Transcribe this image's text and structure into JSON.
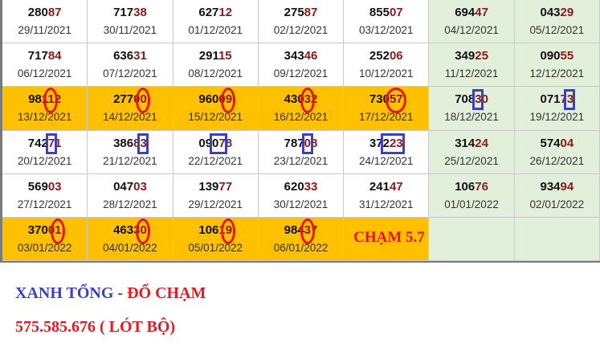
{
  "colors": {
    "highlight_row": "#ffc000",
    "weekend_column": "#e2efda",
    "tail_digits": "#8b1a1a",
    "oval_mark": "#e8141c",
    "box_mark": "#3b3fc4"
  },
  "rows": [
    {
      "highlight": false,
      "cells": [
        {
          "num": "28087",
          "date": "29/11/2021"
        },
        {
          "num": "71738",
          "date": "30/11/2021"
        },
        {
          "num": "62712",
          "date": "01/12/2021"
        },
        {
          "num": "27587",
          "date": "02/12/2021"
        },
        {
          "num": "85507",
          "date": "03/12/2021"
        },
        {
          "num": "69447",
          "date": "04/12/2021"
        },
        {
          "num": "04329",
          "date": "05/12/2021"
        }
      ]
    },
    {
      "highlight": false,
      "cells": [
        {
          "num": "71784",
          "date": "06/12/2021"
        },
        {
          "num": "63631",
          "date": "07/12/2021"
        },
        {
          "num": "29115",
          "date": "08/12/2021"
        },
        {
          "num": "34346",
          "date": "09/12/2021"
        },
        {
          "num": "25206",
          "date": "10/12/2021"
        },
        {
          "num": "34925",
          "date": "11/12/2021"
        },
        {
          "num": "09055",
          "date": "12/12/2021"
        }
      ]
    },
    {
      "highlight": true,
      "cells": [
        {
          "num": "98112",
          "date": "13/12/2021",
          "mark": {
            "type": "oval",
            "digit": 3,
            "span": 1
          }
        },
        {
          "num": "27700",
          "date": "14/12/2021",
          "mark": {
            "type": "oval",
            "digit": 4,
            "span": 1
          }
        },
        {
          "num": "96009",
          "date": "15/12/2021",
          "mark": {
            "type": "oval",
            "digit": 4,
            "span": 1
          }
        },
        {
          "num": "43032",
          "date": "16/12/2021",
          "mark": {
            "type": "oval",
            "digit": 3,
            "span": 1
          }
        },
        {
          "num": "73057",
          "date": "17/12/2021",
          "mark": {
            "type": "oval",
            "digit": 3,
            "span": 2
          }
        },
        {
          "num": "70830",
          "date": "18/12/2021",
          "mark": {
            "type": "box",
            "digit": 3,
            "span": 1
          }
        },
        {
          "num": "07173",
          "date": "19/12/2021",
          "mark": {
            "type": "box",
            "digit": 4,
            "span": 1
          }
        }
      ]
    },
    {
      "highlight": false,
      "cells": [
        {
          "num": "74271",
          "date": "20/12/2021",
          "mark": {
            "type": "box",
            "digit": 3,
            "span": 1
          }
        },
        {
          "num": "38683",
          "date": "21/12/2021",
          "mark": {
            "type": "box",
            "digit": 4,
            "span": 1
          }
        },
        {
          "num": "09078",
          "date": "22/12/2021",
          "mark": {
            "type": "box",
            "digit": 2,
            "span": 2
          }
        },
        {
          "num": "78708",
          "date": "23/12/2021",
          "mark": {
            "type": "box",
            "digit": 3,
            "span": 1
          }
        },
        {
          "num": "37223",
          "date": "24/12/2021",
          "mark": {
            "type": "box",
            "digit": 2,
            "span": 3
          }
        },
        {
          "num": "31424",
          "date": "25/12/2021"
        },
        {
          "num": "57404",
          "date": "26/12/2021"
        }
      ]
    },
    {
      "highlight": false,
      "cells": [
        {
          "num": "56903",
          "date": "27/12/2021"
        },
        {
          "num": "04703",
          "date": "28/12/2021"
        },
        {
          "num": "13977",
          "date": "29/12/2021"
        },
        {
          "num": "62033",
          "date": "30/12/2021"
        },
        {
          "num": "24147",
          "date": "31/12/2021"
        },
        {
          "num": "10676",
          "date": "01/01/2022"
        },
        {
          "num": "93494",
          "date": "02/01/2022"
        }
      ]
    },
    {
      "highlight": true,
      "cells": [
        {
          "num": "37001",
          "date": "03/01/2022",
          "mark": {
            "type": "oval",
            "digit": 4,
            "span": 1
          }
        },
        {
          "num": "46330",
          "date": "04/01/2022",
          "mark": {
            "type": "oval",
            "digit": 4,
            "span": 1
          }
        },
        {
          "num": "10619",
          "date": "05/01/2022",
          "mark": {
            "type": "oval",
            "digit": 4,
            "span": 1
          }
        },
        {
          "num": "98437",
          "date": "06/01/2022",
          "mark": {
            "type": "oval",
            "digit": 3,
            "span": 1
          }
        },
        {
          "label": "CHẠM 5.7"
        },
        {},
        {}
      ]
    }
  ],
  "legend": {
    "blue_part": "XANH TỔNG -",
    "red_part": "ĐỔ CHẠM",
    "line2": "575.585.676 ( LÓT BỘ)"
  }
}
